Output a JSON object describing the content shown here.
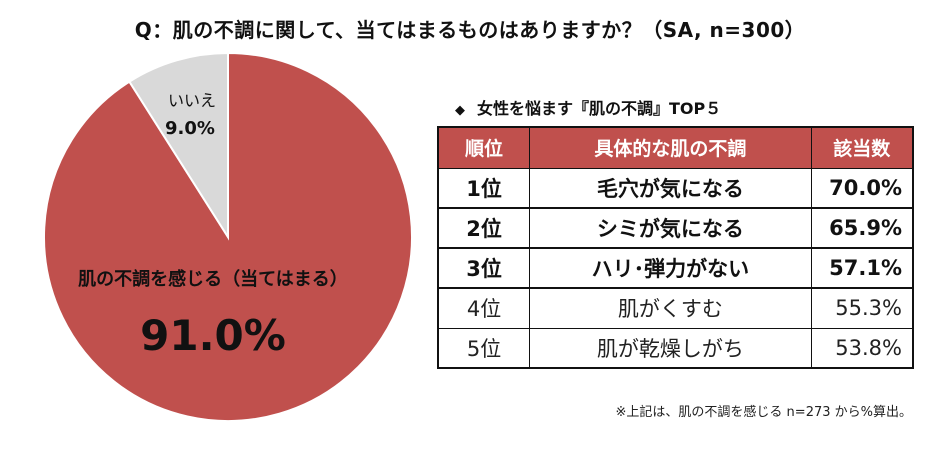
{
  "title": "Q：肌の不調に関して、当てはまるものはありますか？（SA, n=300）",
  "chart_data": {
    "type": "pie",
    "slices": [
      {
        "label": "肌の不調を感じる（当てはまる）",
        "value": 91.0,
        "value_label": "91.0%",
        "color": "#c0504d"
      },
      {
        "label": "いいえ",
        "value": 9.0,
        "value_label": "9.0%",
        "color": "#d9d9d9"
      }
    ]
  },
  "table": {
    "heading": "女性を悩ます『肌の不調』TOP５",
    "bullet": "◆",
    "columns": [
      "順位",
      "具体的な肌の不調",
      "該当数"
    ],
    "rows": [
      {
        "rank": "1位",
        "item": "毛穴が気になる",
        "percent": "70.0%"
      },
      {
        "rank": "2位",
        "item": "シミが気になる",
        "percent": "65.9%"
      },
      {
        "rank": "3位",
        "item": "ハリ･弾力がない",
        "percent": "57.1%"
      },
      {
        "rank": "4位",
        "item": "肌がくすむ",
        "percent": "55.3%"
      },
      {
        "rank": "5位",
        "item": "肌が乾燥しがち",
        "percent": "53.8%"
      }
    ],
    "highlight_colors": {
      "header": "#c0504d"
    }
  },
  "footnote": "※上記は、肌の不調を感じる n=273 から%算出。"
}
